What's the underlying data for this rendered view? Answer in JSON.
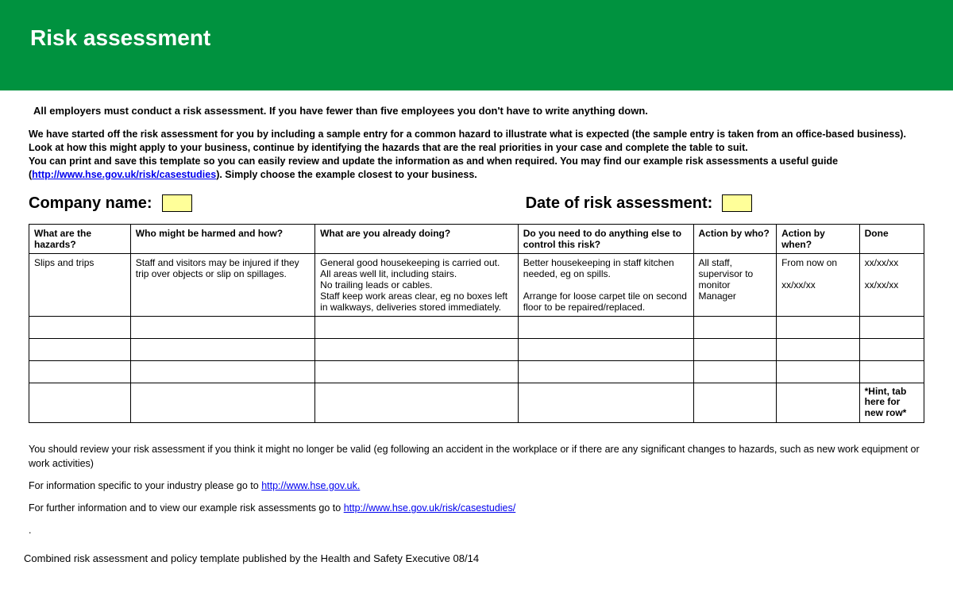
{
  "colors": {
    "header_bg": "#00923f",
    "header_text": "#ffffff",
    "input_bg": "#ffff99",
    "link": "#0000ee",
    "border": "#000000",
    "page_bg": "#ffffff",
    "text": "#000000"
  },
  "header": {
    "title": "Risk assessment"
  },
  "intro": {
    "lead": "All employers must conduct a risk assessment. If you have fewer than five employees you don't have to write anything down.",
    "para_line1": "We have started off the risk assessment for you by including a sample entry for a common hazard to illustrate what is expected (the sample entry is taken from an office-based business).",
    "para_line2": "Look at how this might apply to your business, continue by identifying the hazards that are the real priorities in your case and complete the table to suit.",
    "para_line3": "You can print and save this template so you can easily review and update the information as and when required. You may find our example risk assessments a useful guide",
    "para_open_paren": "(",
    "link_text": "http://www.hse.gov.uk/risk/casestudies",
    "para_line4_after_link": "). Simply choose the example closest to your business."
  },
  "meta": {
    "company_label": "Company name:",
    "date_label": "Date of risk assessment:"
  },
  "table": {
    "col_widths_pct": [
      11,
      20,
      22,
      19,
      9,
      9,
      7
    ],
    "headers": [
      "What are the hazards?",
      "Who might be harmed and how?",
      "What are you already doing?",
      "Do you need to do anything else to control this risk?",
      "Action by who?",
      "Action by when?",
      "Done"
    ],
    "sample_row": {
      "hazard": "Slips and trips",
      "who": "Staff and visitors may be injured if they trip over objects or slip on spillages.",
      "doing": "General good housekeeping is carried out.\nAll areas well lit, including stairs.\nNo trailing leads or cables.\nStaff keep work areas clear, eg no boxes left in walkways, deliveries stored immediately.",
      "else": "Better housekeeping in staff kitchen needed, eg on spills.\n\nArrange for loose carpet tile on second floor to be repaired/replaced.",
      "by_who": "All staff, supervisor to monitor\nManager",
      "by_when": "From now on\n\nxx/xx/xx",
      "done": "xx/xx/xx\n\nxx/xx/xx"
    },
    "empty_rows": 3,
    "hint": "*Hint, tab here for new row*"
  },
  "footer": {
    "review": "You should review your risk assessment if you think it might no longer be valid (eg following an accident in the workplace or if there are any significant changes to hazards, such as new work equipment or work activities)",
    "industry_pre": "For information specific to your industry please go to ",
    "industry_link": "http://www.hse.gov.uk.",
    "further_pre": "For further information and to view our example risk assessments go to ",
    "further_link": "http://www.hse.gov.uk/risk/casestudies/"
  },
  "pub_line": "Combined risk assessment and policy template published by the Health and Safety Executive 08/14"
}
